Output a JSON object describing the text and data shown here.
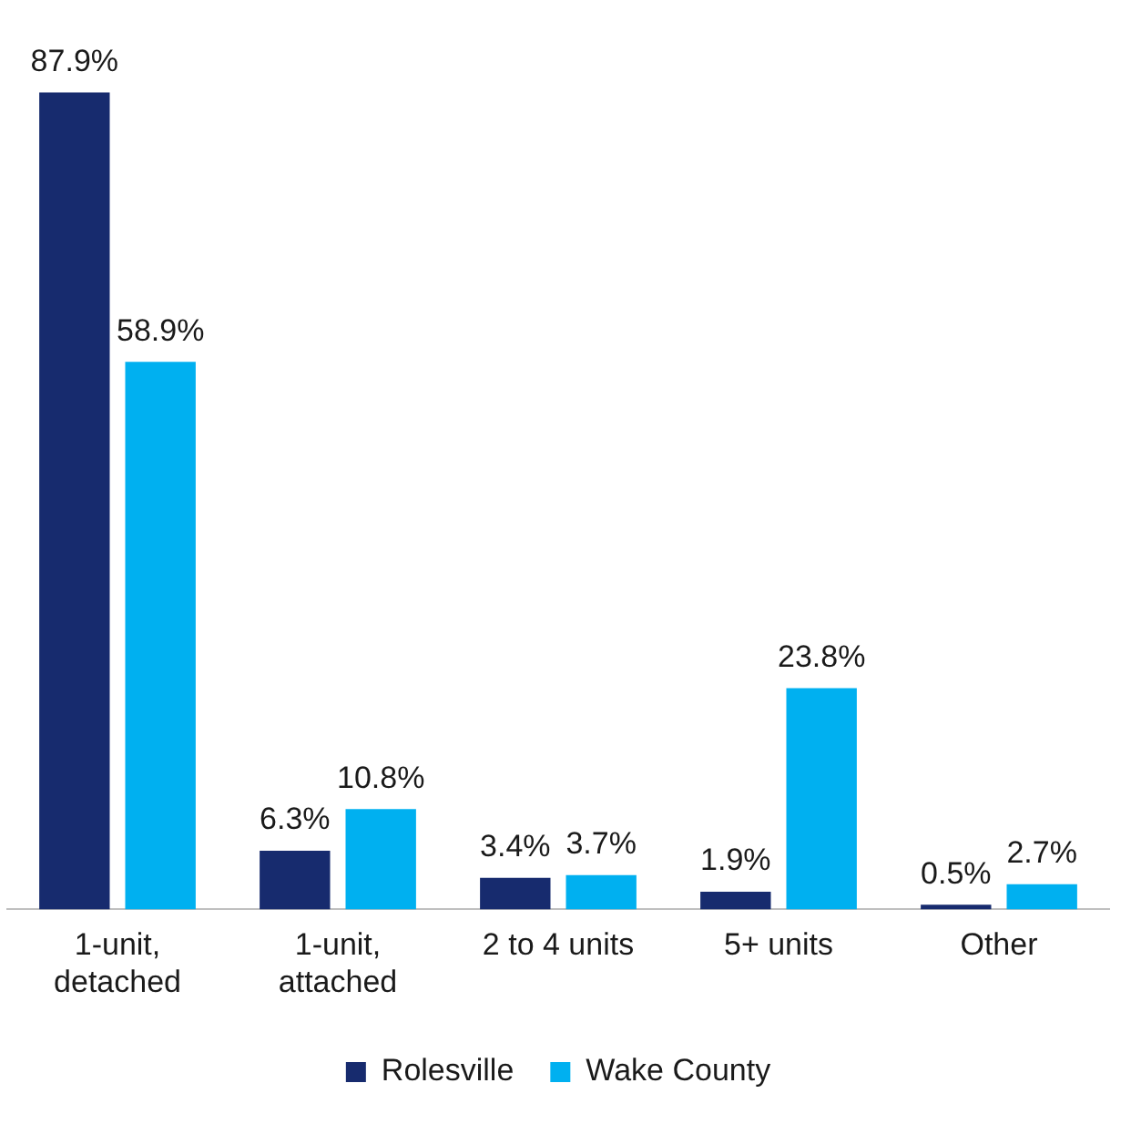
{
  "chart_data": {
    "type": "bar",
    "categories": [
      "1-unit, detached",
      "1-unit, attached",
      "2 to 4 units",
      "5+ units",
      "Other"
    ],
    "series": [
      {
        "name": "Rolesville",
        "color": "#172b6e",
        "values": [
          87.9,
          6.3,
          3.4,
          1.9,
          0.5
        ],
        "value_labels": [
          "87.9%",
          "6.3%",
          "3.4%",
          "1.9%",
          "0.5%"
        ]
      },
      {
        "name": "Wake County",
        "color": "#00b0f0",
        "values": [
          58.9,
          10.8,
          3.7,
          23.8,
          2.7
        ],
        "value_labels": [
          "58.9%",
          "10.8%",
          "3.7%",
          "23.8%",
          "2.7%"
        ]
      }
    ],
    "grid": false,
    "legend": "bottom"
  }
}
